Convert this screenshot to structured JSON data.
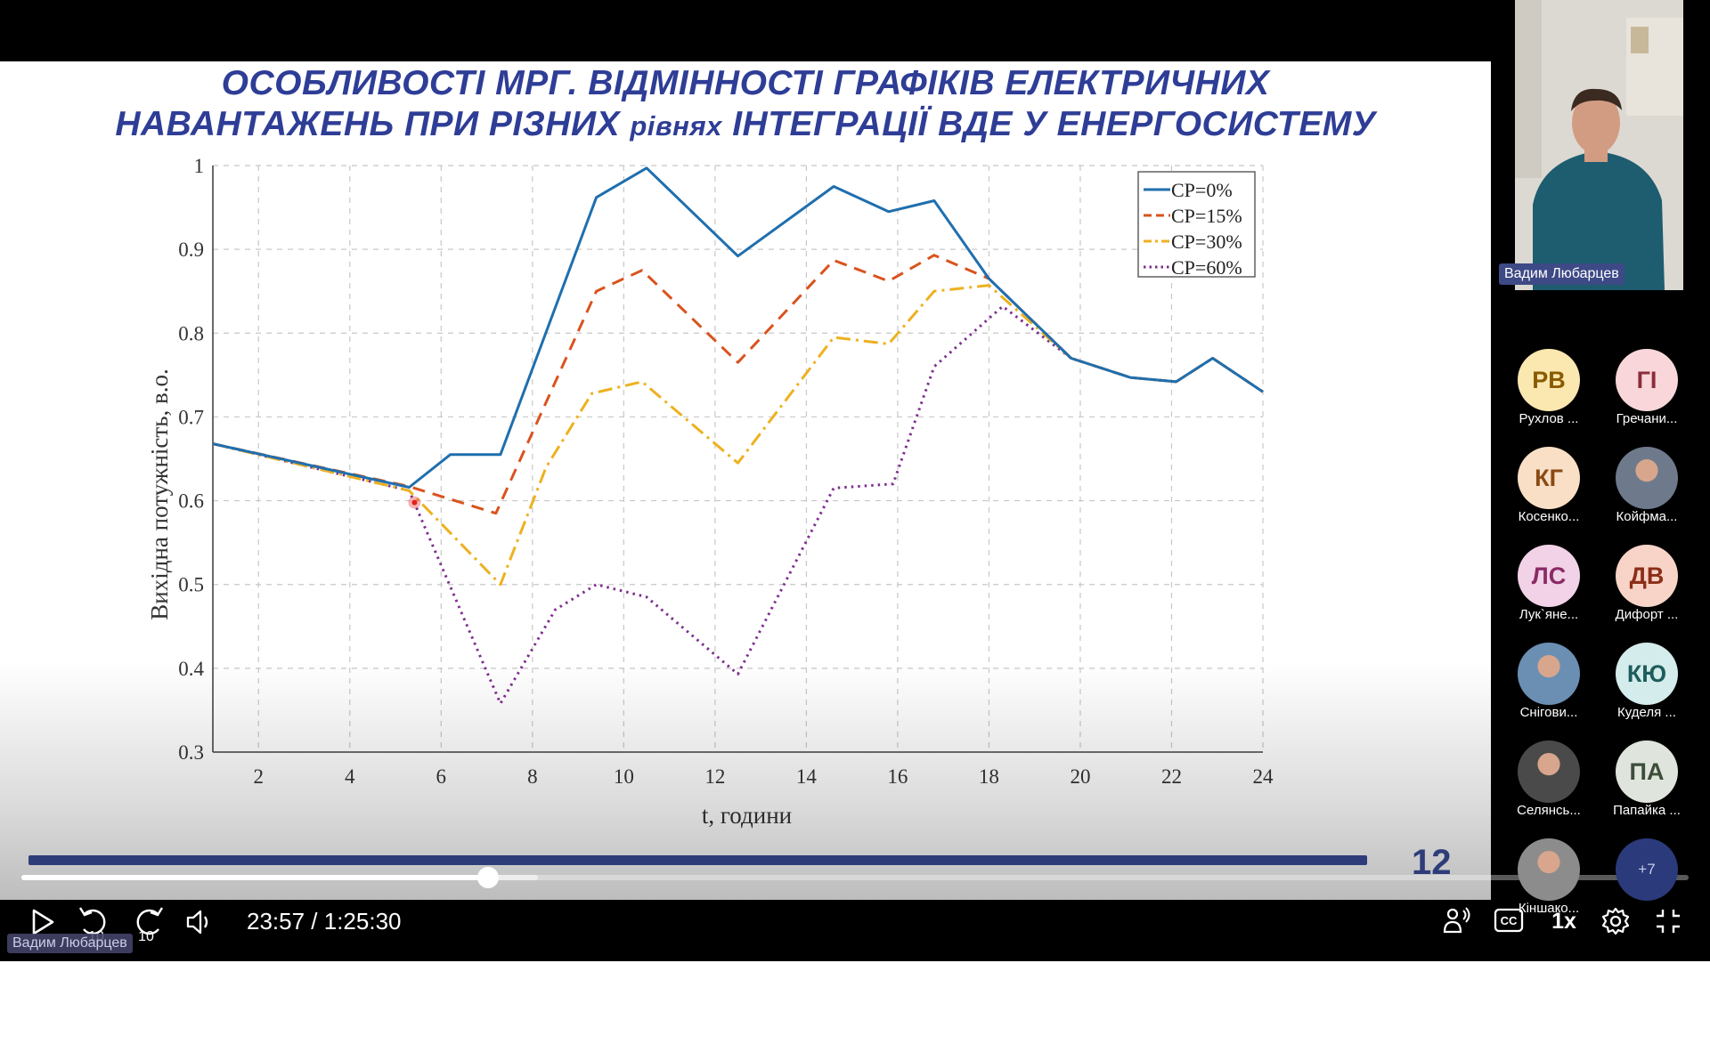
{
  "slide": {
    "title_line1": "ОСОБЛИВОСТІ МРГ. ВІДМІННОСТІ ГРАФІКІВ ЕЛЕКТРИЧНИХ",
    "title_line2a": "НАВАНТАЖЕНЬ ПРИ РІЗНИХ ",
    "title_line2b": "рівнях",
    "title_line2c": " ІНТЕГРАЦІЇ ВДЕ У ЕНЕРГОСИСТЕМУ",
    "slide_number": "12"
  },
  "chart_data": {
    "type": "line",
    "xlabel": "t, години",
    "ylabel": "Вихідна потужність, в.о.",
    "xlim": [
      1,
      24
    ],
    "ylim": [
      0.3,
      1.0
    ],
    "xticks": [
      "2",
      "4",
      "6",
      "8",
      "10",
      "12",
      "14",
      "16",
      "18",
      "20",
      "22",
      "24"
    ],
    "yticks": [
      "0.3",
      "0.4",
      "0.5",
      "0.6",
      "0.7",
      "0.8",
      "0.9",
      "1"
    ],
    "grid": true,
    "legend_position": "top-right",
    "series": [
      {
        "name": "СР=0%",
        "color": "#1f6fae",
        "dash": "solid",
        "points": [
          [
            1,
            0.668
          ],
          [
            5.3,
            0.616
          ],
          [
            6.2,
            0.655
          ],
          [
            7.3,
            0.655
          ],
          [
            9.4,
            0.962
          ],
          [
            10.5,
            0.997
          ],
          [
            12.5,
            0.892
          ],
          [
            14.6,
            0.975
          ],
          [
            15.8,
            0.945
          ],
          [
            16.8,
            0.958
          ],
          [
            18,
            0.865
          ],
          [
            19.8,
            0.77
          ],
          [
            21.1,
            0.747
          ],
          [
            22.1,
            0.742
          ],
          [
            22.9,
            0.77
          ],
          [
            24,
            0.73
          ]
        ]
      },
      {
        "name": "СР=15%",
        "color": "#d9531e",
        "dash": "dashed",
        "points": [
          [
            1,
            0.668
          ],
          [
            5.3,
            0.617
          ],
          [
            7.2,
            0.585
          ],
          [
            9.4,
            0.85
          ],
          [
            10.4,
            0.875
          ],
          [
            12.5,
            0.765
          ],
          [
            14.6,
            0.887
          ],
          [
            15.8,
            0.862
          ],
          [
            16.8,
            0.893
          ],
          [
            18,
            0.865
          ],
          [
            19.8,
            0.77
          ],
          [
            21.1,
            0.747
          ],
          [
            22.1,
            0.742
          ],
          [
            22.9,
            0.77
          ],
          [
            24,
            0.73
          ]
        ]
      },
      {
        "name": "СР=30%",
        "color": "#edb120",
        "dash": "dashdot",
        "points": [
          [
            1,
            0.668
          ],
          [
            5.3,
            0.612
          ],
          [
            7.3,
            0.5
          ],
          [
            8.3,
            0.64
          ],
          [
            9.3,
            0.728
          ],
          [
            10.4,
            0.742
          ],
          [
            12.5,
            0.645
          ],
          [
            14.6,
            0.795
          ],
          [
            15.8,
            0.787
          ],
          [
            16.8,
            0.85
          ],
          [
            18,
            0.857
          ],
          [
            19.8,
            0.77
          ],
          [
            21.1,
            0.747
          ],
          [
            22.1,
            0.742
          ],
          [
            22.9,
            0.77
          ],
          [
            24,
            0.73
          ]
        ]
      },
      {
        "name": "СР=60%",
        "color": "#7e2f8e",
        "dash": "dotted",
        "points": [
          [
            1,
            0.668
          ],
          [
            5.3,
            0.612
          ],
          [
            7.3,
            0.358
          ],
          [
            8.5,
            0.47
          ],
          [
            9.4,
            0.5
          ],
          [
            10.5,
            0.485
          ],
          [
            12.5,
            0.393
          ],
          [
            14.6,
            0.615
          ],
          [
            15.9,
            0.62
          ],
          [
            16.8,
            0.76
          ],
          [
            18.3,
            0.832
          ],
          [
            19.8,
            0.77
          ],
          [
            21.1,
            0.747
          ],
          [
            22.1,
            0.742
          ],
          [
            22.9,
            0.77
          ],
          [
            24,
            0.73
          ]
        ]
      }
    ]
  },
  "player": {
    "current_time": "23:57",
    "separator": " / ",
    "duration": "1:25:30",
    "played_fraction": 0.28,
    "buffered_fraction": 0.31,
    "skip_back_label": "10",
    "skip_forward_label": "10",
    "speed": "1x",
    "presenter_tag": "Вадим Любарцев"
  },
  "camera": {
    "name": "Вадим Любарцев"
  },
  "participants": [
    {
      "initials": "РВ",
      "name": "Рухлов ...",
      "bg": "#fbe7b0",
      "fg": "#8a5a00",
      "photo": false
    },
    {
      "initials": "ГІ",
      "name": "Гречани...",
      "bg": "#f8d6d9",
      "fg": "#8c2c3b",
      "photo": false
    },
    {
      "initials": "КГ",
      "name": "Косенко...",
      "bg": "#f9dfc6",
      "fg": "#8a4a12",
      "photo": false
    },
    {
      "initials": "",
      "name": "Койфма...",
      "bg": "#6e7a8c",
      "fg": "#ffffff",
      "photo": true
    },
    {
      "initials": "ЛС",
      "name": "Лук`яне...",
      "bg": "#f2d2e6",
      "fg": "#8a2a66",
      "photo": false
    },
    {
      "initials": "ДВ",
      "name": "Дифорт ...",
      "bg": "#f7d4c7",
      "fg": "#8c2e17",
      "photo": false
    },
    {
      "initials": "",
      "name": "Снігови...",
      "bg": "#6b8fb3",
      "fg": "#ffffff",
      "photo": true
    },
    {
      "initials": "КЮ",
      "name": "Куделя ...",
      "bg": "#d4eceb",
      "fg": "#1d5c5a",
      "photo": false
    },
    {
      "initials": "",
      "name": "Селянсь...",
      "bg": "#4a4a4a",
      "fg": "#ffffff",
      "photo": true
    },
    {
      "initials": "ПА",
      "name": "Папайка ...",
      "bg": "#dfe5dd",
      "fg": "#3d4d3a",
      "photo": false
    },
    {
      "initials": "",
      "name": "Кіншако...",
      "bg": "#8c8c8c",
      "fg": "#ffffff",
      "photo": true
    },
    {
      "initials": "+7",
      "name": "",
      "bg": "#2b3a7a",
      "fg": "#c6cbe8",
      "photo": false
    }
  ]
}
